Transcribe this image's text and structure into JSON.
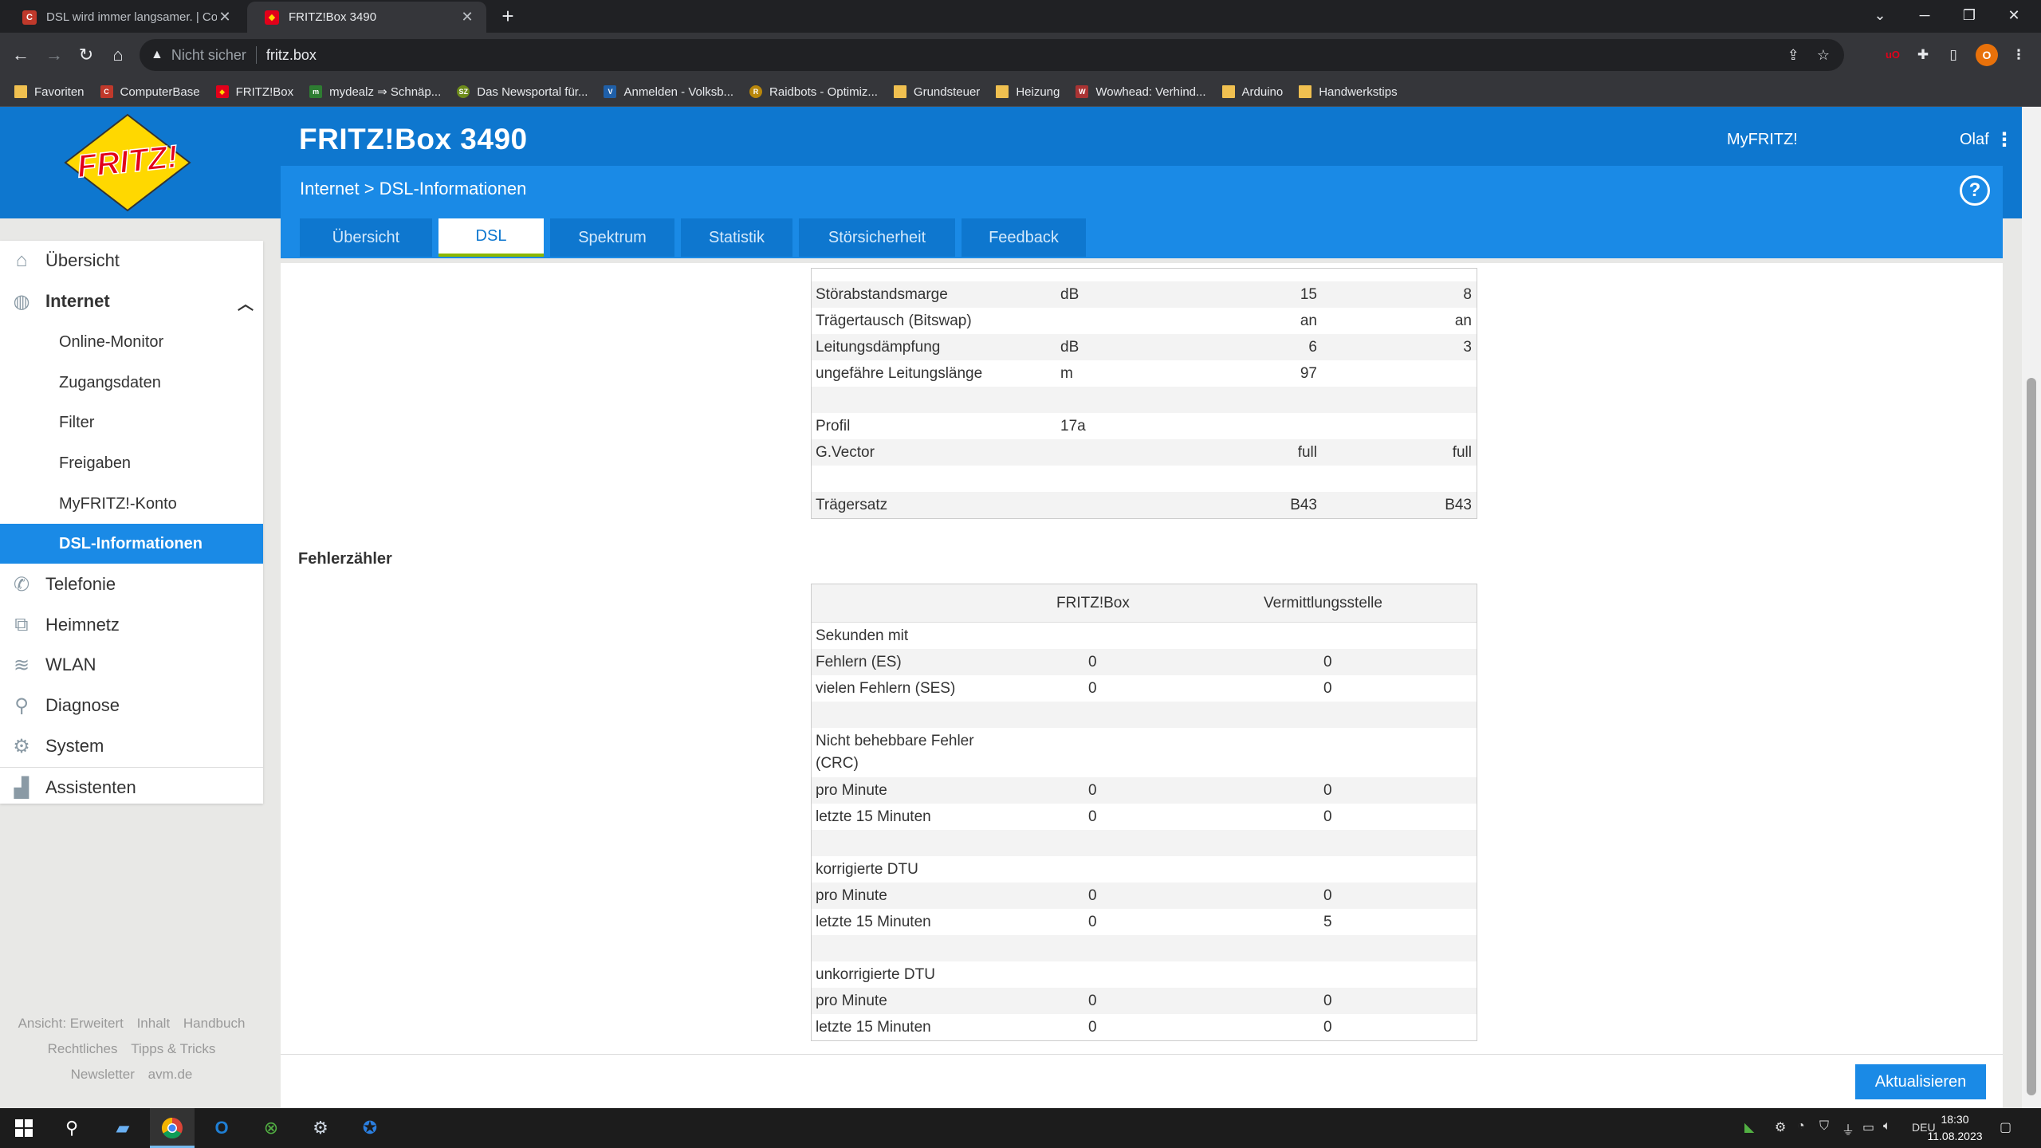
{
  "browser": {
    "tabs": [
      {
        "title": "DSL wird immer langsamer. | Con",
        "favicon": "computerbase-icon",
        "close": "✕"
      },
      {
        "title": "FRITZ!Box 3490",
        "favicon": "fritz-icon",
        "close": "✕"
      }
    ],
    "newtab": "+",
    "address": {
      "security": "Nicht sicher",
      "url": "fritz.box"
    },
    "bookmarks": [
      {
        "label": "Favoriten",
        "icon": "folder-icon"
      },
      {
        "label": "ComputerBase",
        "icon": "computerbase-icon"
      },
      {
        "label": "FRITZ!Box",
        "icon": "fritz-icon"
      },
      {
        "label": "mydealz ⇒ Schnäp...",
        "icon": "mydealz-icon"
      },
      {
        "label": "Das Newsportal für...",
        "icon": "sz-icon"
      },
      {
        "label": "Anmelden - Volksb...",
        "icon": "volksbank-icon"
      },
      {
        "label": "Raidbots - Optimiz...",
        "icon": "raidbots-icon"
      },
      {
        "label": "Grundsteuer",
        "icon": "folder-icon"
      },
      {
        "label": "Heizung",
        "icon": "folder-icon"
      },
      {
        "label": "Wowhead: Verhind...",
        "icon": "wowhead-icon"
      },
      {
        "label": "Arduino",
        "icon": "folder-icon"
      },
      {
        "label": "Handwerkstips",
        "icon": "folder-icon"
      }
    ]
  },
  "header": {
    "logo_text": "FRITZ!",
    "title": "FRITZ!Box 3490",
    "myfritz": "MyFRITZ!",
    "user": "Olaf",
    "breadcrumb": "Internet > DSL-Informationen",
    "help": "?"
  },
  "tabs": [
    {
      "label": "Übersicht",
      "active": false
    },
    {
      "label": "DSL",
      "active": true
    },
    {
      "label": "Spektrum",
      "active": false
    },
    {
      "label": "Statistik",
      "active": false
    },
    {
      "label": "Störsicherheit",
      "active": false
    },
    {
      "label": "Feedback",
      "active": false
    }
  ],
  "sidebar": {
    "items": [
      {
        "label": "Übersicht",
        "icon": "home-icon"
      },
      {
        "label": "Internet",
        "icon": "globe-icon"
      },
      {
        "label": "Telefonie",
        "icon": "phone-icon"
      },
      {
        "label": "Heimnetz",
        "icon": "network-icon"
      },
      {
        "label": "WLAN",
        "icon": "wifi-icon"
      },
      {
        "label": "Diagnose",
        "icon": "diagnose-icon"
      },
      {
        "label": "System",
        "icon": "system-icon"
      },
      {
        "label": "Assistenten",
        "icon": "wizard-icon"
      }
    ],
    "subitems": [
      "Online-Monitor",
      "Zugangsdaten",
      "Filter",
      "Freigaben",
      "MyFRITZ!-Konto",
      "DSL-Informationen"
    ],
    "footer": [
      "Ansicht: Erweitert",
      "Inhalt",
      "Handbuch",
      "Rechtliches",
      "Tipps & Tricks",
      "Newsletter",
      "avm.de"
    ]
  },
  "dsl_table": {
    "rows": [
      {
        "label": "Störabstandsmarge",
        "unit": "dB",
        "fritzbox": "15",
        "vst": "8"
      },
      {
        "label": "Trägertausch (Bitswap)",
        "unit": "",
        "fritzbox": "an",
        "vst": "an"
      },
      {
        "label": "Leitungsdämpfung",
        "unit": "dB",
        "fritzbox": "6",
        "vst": "3"
      },
      {
        "label": "ungefähre Leitungslänge",
        "unit": "m",
        "fritzbox": "97",
        "vst": ""
      },
      {
        "label": "",
        "unit": "",
        "fritzbox": "",
        "vst": ""
      },
      {
        "label": "Profil",
        "unit": "17a",
        "fritzbox": "",
        "vst": ""
      },
      {
        "label": "G.Vector",
        "unit": "",
        "fritzbox": "full",
        "vst": "full"
      },
      {
        "label": "",
        "unit": "",
        "fritzbox": "",
        "vst": ""
      },
      {
        "label": "Trägersatz",
        "unit": "",
        "fritzbox": "B43",
        "vst": "B43"
      }
    ]
  },
  "errors": {
    "title": "Fehlerzähler",
    "headers": [
      "FRITZ!Box",
      "Vermittlungsstelle"
    ],
    "rows": [
      {
        "label": "Sekunden mit",
        "fritzbox": "",
        "vst": ""
      },
      {
        "label": "Fehlern (ES)",
        "fritzbox": "0",
        "vst": "0"
      },
      {
        "label": "vielen Fehlern (SES)",
        "fritzbox": "0",
        "vst": "0"
      },
      {
        "label": "",
        "fritzbox": "",
        "vst": ""
      },
      {
        "label": "Nicht behebbare Fehler (CRC)",
        "fritzbox": "",
        "vst": "",
        "tall": true
      },
      {
        "label": "pro Minute",
        "fritzbox": "0",
        "vst": "0"
      },
      {
        "label": "letzte 15 Minuten",
        "fritzbox": "0",
        "vst": "0"
      },
      {
        "label": "",
        "fritzbox": "",
        "vst": ""
      },
      {
        "label": "korrigierte DTU",
        "fritzbox": "",
        "vst": ""
      },
      {
        "label": "pro Minute",
        "fritzbox": "0",
        "vst": "0"
      },
      {
        "label": "letzte 15 Minuten",
        "fritzbox": "0",
        "vst": "5"
      },
      {
        "label": "",
        "fritzbox": "",
        "vst": ""
      },
      {
        "label": "unkorrigierte DTU",
        "fritzbox": "",
        "vst": ""
      },
      {
        "label": "pro Minute",
        "fritzbox": "0",
        "vst": "0"
      },
      {
        "label": "letzte 15 Minuten",
        "fritzbox": "0",
        "vst": "0"
      }
    ]
  },
  "actions": {
    "refresh": "Aktualisieren"
  },
  "taskbar": {
    "lang": "DEU",
    "time": "18:30",
    "date": "11.08.2023"
  },
  "colors": {
    "accent": "#0e77cf",
    "accent_light": "#1a8ae6",
    "tab_underline": "#8cb800"
  }
}
